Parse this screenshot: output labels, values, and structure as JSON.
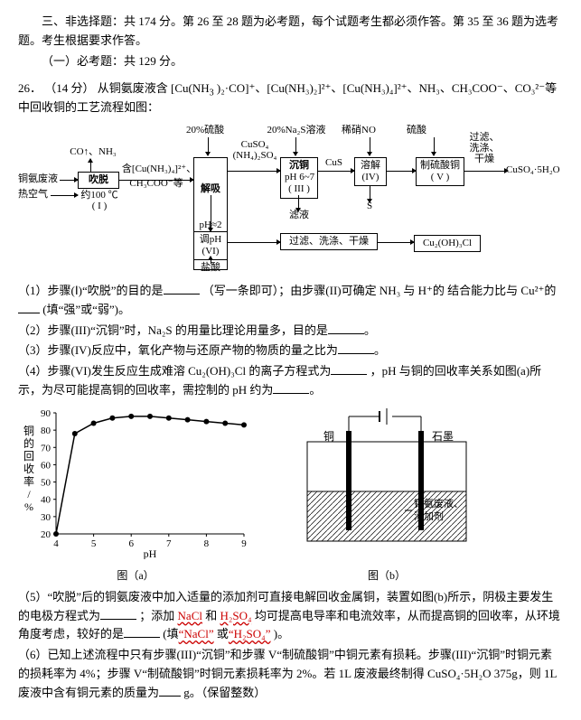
{
  "header": {
    "part_line": "三、非选择题：共 174 分。第 26 至 28 题为必考题，每个试题考生都必须作答。第 35 至 36 题为选考题。考生根据要求作答。",
    "sub_line": "（一）必考题：共 129 分。"
  },
  "problem": {
    "number": "26．",
    "points": "（14 分）",
    "stem_a": "从铜氨废液含 [Cu(NH",
    "stem_b": ")₂·CO]⁺、[Cu(NH₃)₂]²⁺、[Cu(NH₃)₄]²⁺、NH₃、CH₃COO⁻、CO₃²⁻等中回收铜的工艺流程如图："
  },
  "flow": {
    "nodes": {
      "in1": "CO↑、NH₃",
      "in2a": "铜氨废液",
      "in2b": "热空气",
      "box1a": "吹脱",
      "box1b": "约100 ℃\n( I )",
      "mid_label_top": "含[Cu(NH₃)₄]²⁺、",
      "mid_label_bot": "CH₃COO⁻等",
      "t20h2so4": "20%硫酸",
      "box2a": "解吸",
      "box2b": "pH≈2\n( II )",
      "t_cuso4": "CuSO₄\n(NH₄)₂SO₄",
      "t_na2s": "20%Na₂S溶液",
      "box3a": "沉铜",
      "box3b": "pH 6~7\n( III )",
      "cus": "CuS",
      "t_hno3": "稀硝NO",
      "box4": "溶解\n(IV)",
      "t_h2so4b": "硫酸",
      "box5": "制硫酸铜\n( V )",
      "out_right": "过滤、\n洗涤、\n干燥",
      "out_prod": "CuSO₄·5H₂O",
      "filtrate": "滤液",
      "s_label": "S",
      "box6a": "调pH",
      "box6b": "(VI)",
      "hcl": "盐酸",
      "box7": "过滤、洗涤、干燥",
      "out7": "Cu₂(OH)₃Cl"
    }
  },
  "subq": {
    "q1a": "（1）步骤(Ⅰ)“吹脱”的目的是",
    "q1b": "（写一条即可）；由步骤(II)可确定 NH₃ 与 H⁺的 结合能力比与 Cu²⁺的",
    "q1c": "(填“强”或“弱”)。",
    "q2": "（2）步骤(III)“沉铜”时，Na₂S 的用量比理论用量多，目的是",
    "q3": "（3）步骤(IV)反应中，氧化产物与还原产物的物质的量之比为",
    "q4a": "（4）步骤(VI)发生反应生成难溶 Cu₂(OH)₃Cl 的离子方程式为",
    "q4b": "，pH 与铜的回收率关系如图(a)所示，为尽可能提高铜的回收率，需控制的 pH 约为"
  },
  "chartA": {
    "type": "line",
    "x": [
      4,
      4.5,
      5,
      5.5,
      6,
      6.5,
      7,
      7.5,
      8,
      8.5,
      9
    ],
    "y": [
      20,
      78,
      84,
      87,
      88,
      88,
      87,
      86,
      85,
      84,
      83
    ],
    "xlabel": "pH",
    "ylabel": "铜的回收率/%",
    "ylim": [
      20,
      90
    ],
    "ytick_step": 10,
    "xlim": [
      4,
      9
    ],
    "xtick_step": 1,
    "line_color": "#000",
    "marker": "circle",
    "marker_size": 3,
    "background": "#fff"
  },
  "chartB": {
    "type": "diagram",
    "labels": {
      "anode": "铜",
      "cathode": "石墨",
      "sol1": "铜氨废液、",
      "sol2": "添加剂"
    }
  },
  "captions": {
    "a": "图（a）",
    "b": "图（b）"
  },
  "subq5": {
    "a": "（5）“吹脱”后的铜氨废液中加入适量的添加剂可直接电解回收金属铜，装置如图(b)所示，阴极主要发生的电极方程式为",
    "b": "；添加 ",
    "n1": "NaCl",
    "mid": " 和 ",
    "n2": "H₂SO₄",
    "c": " 均可提高电导率和电流效率，从而提高铜的回收率，从环境角度考虑，较好的是",
    "d": "(填",
    "q1": "“NaCl”",
    "or": "或",
    "q2": "“H₂SO₄”",
    "e": ")。"
  },
  "subq6": {
    "a": "（6）已知上述流程中只有步骤(III)“沉铜”和步骤 V“制硫酸铜”中铜元素有损耗。步骤(III)“沉铜”时铜元素的损耗率为 4%；步骤 V“制硫酸铜”时铜元素损耗率为 2%。若 1L 废液最终制得 CuSO₄·5H₂O 375g，则 1L 废液中含有铜元素的质量为",
    "b": "g。（保留整数）"
  }
}
